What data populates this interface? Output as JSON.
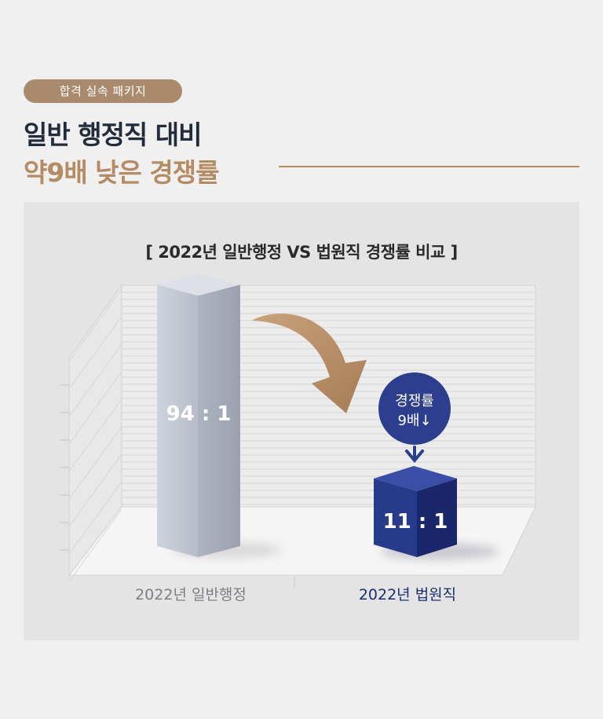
{
  "header": {
    "badge": "합격 실속 패키지",
    "title_line1": "일반 행정직 대비",
    "title_line2": "약9배 낮은 경쟁률"
  },
  "chart_data": {
    "type": "bar",
    "title": "[ 2022년 일반행정 VS 법원직 경쟁률 비교 ]",
    "categories": [
      "2022년 일반행정",
      "2022년 법원직"
    ],
    "values": [
      94,
      11
    ],
    "data_labels": [
      "94 : 1",
      "11 : 1"
    ],
    "annotation": {
      "line1": "경쟁률",
      "line2": "9배↓"
    },
    "ylim": [
      0,
      100
    ],
    "colors": {
      "bar1_front": "#c7cbd6",
      "bar1_side": "#a6abb8",
      "bar1_top": "#dde0e7",
      "bar2_front": "#283a8a",
      "bar2_side": "#1a276b",
      "bar2_top": "#3a4ea6",
      "arrow": "#b48b62",
      "annotation": "#2d3e8e",
      "label1": "#7d7f86",
      "label2": "#1d2f6e"
    }
  }
}
